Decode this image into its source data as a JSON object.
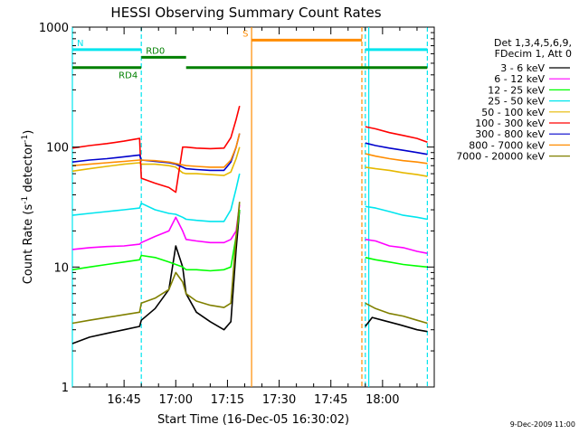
{
  "chart_data": {
    "type": "line",
    "title": "HESSI Observing Summary Count Rates",
    "xlabel": "Start Time (16-Dec-05 16:30:02)",
    "ylabel": "Count Rate (s",
    "ylabel_sup1": "-1",
    "ylabel_mid": " detector",
    "ylabel_sup2": "-1",
    "ylabel_end": ")",
    "yscale": "log",
    "ylim": [
      1,
      1000
    ],
    "xlim_minutes": [
      0,
      105
    ],
    "x_tick_labels": [
      "16:45",
      "17:00",
      "17:15",
      "17:30",
      "17:45",
      "18:00"
    ],
    "x_tick_minutes": [
      15,
      30,
      45,
      60,
      75,
      90
    ],
    "y_tick_labels": [
      "1",
      "10",
      "100",
      "1000"
    ],
    "y_tick_values": [
      1,
      10,
      100,
      1000
    ],
    "legend_header": [
      "Det 1,3,4,5,6,9,",
      "FDecim 1, Att 0"
    ],
    "legend_placement": "right",
    "timestamp": "9-Dec-2009 11:00",
    "flags": [
      {
        "label": "N",
        "color": "#00e5ee",
        "y": 650,
        "segments": [
          [
            0,
            20
          ],
          [
            85,
            103
          ]
        ]
      },
      {
        "label": "RD0",
        "color": "#008000",
        "y": 560,
        "segments": [
          [
            20,
            33
          ]
        ]
      },
      {
        "label": "RD4",
        "color": "#008000",
        "y": 460,
        "segments": [
          [
            0,
            20
          ],
          [
            33,
            103
          ]
        ]
      },
      {
        "label": "S",
        "color": "#ff8c00",
        "y": 780,
        "segments": [
          [
            52,
            84
          ]
        ]
      }
    ],
    "vlines": [
      {
        "x": 0,
        "color": "#00e5ee",
        "dash": false
      },
      {
        "x": 20,
        "color": "#00e5ee",
        "dash": true
      },
      {
        "x": 52,
        "color": "#ff8c00",
        "dash": false
      },
      {
        "x": 84,
        "color": "#ff8c00",
        "dash": true
      },
      {
        "x": 85,
        "color": "#00e5ee",
        "dash": true
      },
      {
        "x": 86,
        "color": "#00e5ee",
        "dash": false
      },
      {
        "x": 103,
        "color": "#00e5ee",
        "dash": true
      }
    ],
    "series": [
      {
        "name": "3 - 6 keV",
        "color": "#000000",
        "points": [
          [
            0,
            2.3
          ],
          [
            5,
            2.6
          ],
          [
            10,
            2.8
          ],
          [
            15,
            3.0
          ],
          [
            19.5,
            3.2
          ],
          [
            20,
            3.6
          ],
          [
            24,
            4.5
          ],
          [
            28,
            6.5
          ],
          [
            30,
            15
          ],
          [
            32,
            10
          ],
          [
            33,
            6
          ],
          [
            36,
            4.2
          ],
          [
            40,
            3.5
          ],
          [
            44,
            3.0
          ],
          [
            46,
            3.5
          ],
          [
            47.5,
            14
          ],
          [
            48.5,
            30
          ],
          [
            null,
            null
          ],
          [
            85,
            3.2
          ],
          [
            87,
            3.8
          ],
          [
            90,
            3.6
          ],
          [
            95,
            3.3
          ],
          [
            100,
            3.0
          ],
          [
            103,
            2.9
          ]
        ]
      },
      {
        "name": "6 - 12 keV",
        "color": "#ff00ff",
        "points": [
          [
            0,
            14
          ],
          [
            5,
            14.5
          ],
          [
            10,
            14.8
          ],
          [
            15,
            15
          ],
          [
            19.5,
            15.5
          ],
          [
            20,
            16
          ],
          [
            24,
            18
          ],
          [
            28,
            20
          ],
          [
            30,
            26
          ],
          [
            32,
            20
          ],
          [
            33,
            17
          ],
          [
            36,
            16.5
          ],
          [
            40,
            16
          ],
          [
            44,
            16
          ],
          [
            46,
            17
          ],
          [
            47.5,
            20
          ],
          [
            48.5,
            33
          ],
          [
            null,
            null
          ],
          [
            85,
            17
          ],
          [
            88,
            16.5
          ],
          [
            92,
            15
          ],
          [
            96,
            14.5
          ],
          [
            100,
            13.5
          ],
          [
            103,
            13
          ]
        ]
      },
      {
        "name": "12 - 25 keV",
        "color": "#00ff00",
        "points": [
          [
            0,
            9.5
          ],
          [
            5,
            10
          ],
          [
            10,
            10.5
          ],
          [
            15,
            11
          ],
          [
            19.5,
            11.5
          ],
          [
            20,
            12.5
          ],
          [
            24,
            12
          ],
          [
            28,
            11
          ],
          [
            30,
            10.5
          ],
          [
            32,
            10
          ],
          [
            33,
            9.5
          ],
          [
            36,
            9.5
          ],
          [
            40,
            9.3
          ],
          [
            44,
            9.5
          ],
          [
            46,
            10
          ],
          [
            47.5,
            18
          ],
          [
            48.5,
            30
          ],
          [
            null,
            null
          ],
          [
            85,
            12
          ],
          [
            88,
            11.5
          ],
          [
            92,
            11
          ],
          [
            96,
            10.5
          ],
          [
            100,
            10.2
          ],
          [
            103,
            10
          ]
        ]
      },
      {
        "name": "25 - 50 keV",
        "color": "#00e5ee",
        "points": [
          [
            0,
            27
          ],
          [
            5,
            28
          ],
          [
            10,
            29
          ],
          [
            15,
            30
          ],
          [
            19.5,
            31
          ],
          [
            20,
            34
          ],
          [
            24,
            30
          ],
          [
            28,
            28
          ],
          [
            30,
            27.5
          ],
          [
            32,
            26
          ],
          [
            33,
            25
          ],
          [
            36,
            24.5
          ],
          [
            40,
            24
          ],
          [
            44,
            24
          ],
          [
            46,
            30
          ],
          [
            47.5,
            45
          ],
          [
            48.5,
            60
          ],
          [
            null,
            null
          ],
          [
            85,
            32
          ],
          [
            88,
            31
          ],
          [
            92,
            29
          ],
          [
            96,
            27
          ],
          [
            100,
            26
          ],
          [
            103,
            25
          ]
        ]
      },
      {
        "name": "50 - 100 keV",
        "color": "#e6b800",
        "points": [
          [
            0,
            63
          ],
          [
            5,
            66
          ],
          [
            10,
            69
          ],
          [
            15,
            72
          ],
          [
            19.5,
            74
          ],
          [
            20,
            72
          ],
          [
            24,
            72
          ],
          [
            28,
            70
          ],
          [
            30,
            68
          ],
          [
            32,
            61
          ],
          [
            33,
            60
          ],
          [
            36,
            60
          ],
          [
            40,
            59
          ],
          [
            44,
            58
          ],
          [
            46,
            62
          ],
          [
            47.5,
            80
          ],
          [
            48.5,
            100
          ],
          [
            null,
            null
          ],
          [
            85,
            68
          ],
          [
            88,
            66
          ],
          [
            92,
            64
          ],
          [
            96,
            61
          ],
          [
            100,
            59
          ],
          [
            103,
            57
          ]
        ]
      },
      {
        "name": "100 - 300 keV",
        "color": "#ff0000",
        "points": [
          [
            0,
            98
          ],
          [
            5,
            103
          ],
          [
            10,
            107
          ],
          [
            15,
            112
          ],
          [
            19.5,
            118
          ],
          [
            20,
            55
          ],
          [
            24,
            50
          ],
          [
            28,
            46
          ],
          [
            30,
            42
          ],
          [
            32,
            100
          ],
          [
            33,
            100
          ],
          [
            36,
            98
          ],
          [
            40,
            97
          ],
          [
            44,
            98
          ],
          [
            46,
            120
          ],
          [
            47.5,
            170
          ],
          [
            48.5,
            220
          ],
          [
            null,
            null
          ],
          [
            85,
            148
          ],
          [
            88,
            142
          ],
          [
            92,
            132
          ],
          [
            96,
            125
          ],
          [
            100,
            118
          ],
          [
            103,
            110
          ]
        ]
      },
      {
        "name": "300 - 800 keV",
        "color": "#0000cc",
        "points": [
          [
            0,
            75
          ],
          [
            5,
            78
          ],
          [
            10,
            80
          ],
          [
            15,
            83
          ],
          [
            19.5,
            86
          ],
          [
            20,
            78
          ],
          [
            24,
            76
          ],
          [
            28,
            74
          ],
          [
            30,
            72
          ],
          [
            32,
            68
          ],
          [
            33,
            66
          ],
          [
            36,
            65
          ],
          [
            40,
            64
          ],
          [
            44,
            64
          ],
          [
            46,
            75
          ],
          [
            47.5,
            100
          ],
          [
            48.5,
            130
          ],
          [
            null,
            null
          ],
          [
            85,
            108
          ],
          [
            88,
            103
          ],
          [
            92,
            98
          ],
          [
            96,
            94
          ],
          [
            100,
            90
          ],
          [
            103,
            87
          ]
        ]
      },
      {
        "name": "800 - 7000 keV",
        "color": "#ff8c00",
        "points": [
          [
            0,
            70
          ],
          [
            5,
            72
          ],
          [
            10,
            74
          ],
          [
            15,
            76
          ],
          [
            19.5,
            78
          ],
          [
            20,
            78
          ],
          [
            24,
            77
          ],
          [
            28,
            75
          ],
          [
            30,
            73
          ],
          [
            32,
            71
          ],
          [
            33,
            70
          ],
          [
            36,
            69
          ],
          [
            40,
            68
          ],
          [
            44,
            68
          ],
          [
            46,
            78
          ],
          [
            47.5,
            100
          ],
          [
            48.5,
            130
          ],
          [
            null,
            null
          ],
          [
            85,
            88
          ],
          [
            88,
            84
          ],
          [
            92,
            80
          ],
          [
            96,
            77
          ],
          [
            100,
            75
          ],
          [
            103,
            73
          ]
        ]
      },
      {
        "name": "7000 - 20000 keV",
        "color": "#808000",
        "points": [
          [
            0,
            3.4
          ],
          [
            5,
            3.6
          ],
          [
            10,
            3.8
          ],
          [
            15,
            4.0
          ],
          [
            19.5,
            4.2
          ],
          [
            20,
            5.0
          ],
          [
            24,
            5.5
          ],
          [
            28,
            6.5
          ],
          [
            30,
            9
          ],
          [
            32,
            7.5
          ],
          [
            33,
            6
          ],
          [
            36,
            5.2
          ],
          [
            40,
            4.8
          ],
          [
            44,
            4.6
          ],
          [
            46,
            5
          ],
          [
            47.5,
            18
          ],
          [
            48.5,
            35
          ],
          [
            null,
            null
          ],
          [
            85,
            5
          ],
          [
            88,
            4.5
          ],
          [
            92,
            4.1
          ],
          [
            96,
            3.9
          ],
          [
            100,
            3.6
          ],
          [
            103,
            3.4
          ]
        ]
      }
    ]
  }
}
